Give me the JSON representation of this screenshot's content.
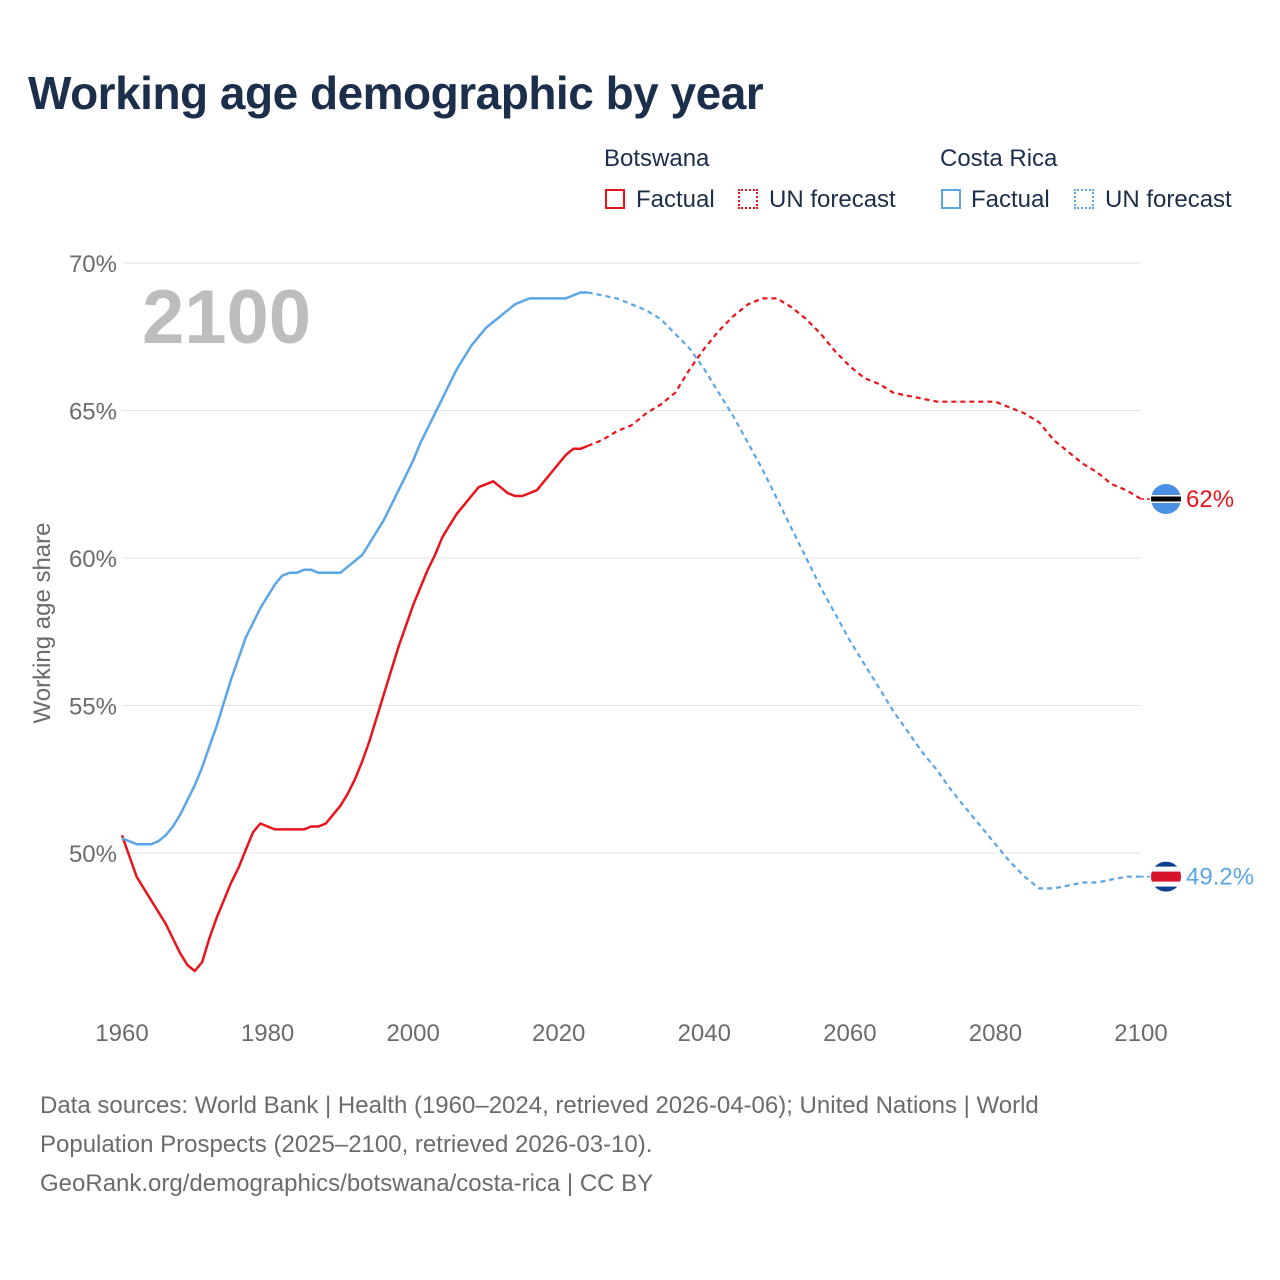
{
  "chart_data": {
    "type": "line",
    "title": "Working age demographic by year",
    "xlabel": "",
    "ylabel": "Working age share",
    "xlim": [
      1960,
      2100
    ],
    "ylim": [
      45.5,
      70.5
    ],
    "x_ticks": [
      1960,
      1980,
      2000,
      2020,
      2040,
      2060,
      2080,
      2100
    ],
    "y_ticks": [
      50,
      55,
      60,
      65,
      70
    ],
    "y_tick_labels": [
      "50%",
      "55%",
      "60%",
      "65%",
      "70%"
    ],
    "year_watermark": "2100",
    "legend": {
      "groups": [
        {
          "name": "Botswana",
          "items": [
            "Factual",
            "UN forecast"
          ]
        },
        {
          "name": "Costa Rica",
          "items": [
            "Factual",
            "UN forecast"
          ]
        }
      ]
    },
    "series": [
      {
        "name": "Botswana",
        "color": "#e8141b",
        "end_label": "62%",
        "factual": {
          "x": [
            1960,
            1961,
            1962,
            1963,
            1964,
            1965,
            1966,
            1967,
            1968,
            1969,
            1970,
            1971,
            1972,
            1973,
            1974,
            1975,
            1976,
            1977,
            1978,
            1979,
            1980,
            1981,
            1982,
            1983,
            1984,
            1985,
            1986,
            1987,
            1988,
            1989,
            1990,
            1991,
            1992,
            1993,
            1994,
            1995,
            1996,
            1997,
            1998,
            1999,
            2000,
            2001,
            2002,
            2003,
            2004,
            2005,
            2006,
            2007,
            2008,
            2009,
            2010,
            2011,
            2012,
            2013,
            2014,
            2015,
            2016,
            2017,
            2018,
            2019,
            2020,
            2021,
            2022,
            2023,
            2024
          ],
          "y": [
            50.6,
            49.9,
            49.2,
            48.8,
            48.4,
            48.0,
            47.6,
            47.1,
            46.6,
            46.2,
            46.0,
            46.3,
            47.1,
            47.8,
            48.4,
            49.0,
            49.5,
            50.1,
            50.7,
            51.0,
            50.9,
            50.8,
            50.8,
            50.8,
            50.8,
            50.8,
            50.9,
            50.9,
            51.0,
            51.3,
            51.6,
            52.0,
            52.5,
            53.1,
            53.8,
            54.6,
            55.4,
            56.2,
            57.0,
            57.7,
            58.4,
            59.0,
            59.6,
            60.1,
            60.7,
            61.1,
            61.5,
            61.8,
            62.1,
            62.4,
            62.5,
            62.6,
            62.4,
            62.2,
            62.1,
            62.1,
            62.2,
            62.3,
            62.6,
            62.9,
            63.2,
            63.5,
            63.7,
            63.7,
            63.8
          ]
        },
        "forecast": {
          "x": [
            2024,
            2026,
            2028,
            2030,
            2032,
            2034,
            2036,
            2038,
            2040,
            2042,
            2044,
            2046,
            2048,
            2050,
            2052,
            2054,
            2056,
            2058,
            2060,
            2062,
            2064,
            2066,
            2068,
            2070,
            2072,
            2074,
            2076,
            2078,
            2080,
            2082,
            2084,
            2086,
            2088,
            2090,
            2092,
            2094,
            2096,
            2098,
            2100
          ],
          "y": [
            63.8,
            64.0,
            64.3,
            64.5,
            64.9,
            65.2,
            65.6,
            66.4,
            67.1,
            67.7,
            68.2,
            68.6,
            68.8,
            68.8,
            68.5,
            68.1,
            67.6,
            67.0,
            66.5,
            66.1,
            65.9,
            65.6,
            65.5,
            65.4,
            65.3,
            65.3,
            65.3,
            65.3,
            65.3,
            65.1,
            64.9,
            64.6,
            64.0,
            63.6,
            63.2,
            62.9,
            62.5,
            62.3,
            62.0
          ]
        }
      },
      {
        "name": "Costa Rica",
        "color": "#5aa6e6",
        "end_label": "49.2%",
        "factual": {
          "x": [
            1960,
            1961,
            1962,
            1963,
            1964,
            1965,
            1966,
            1967,
            1968,
            1969,
            1970,
            1971,
            1972,
            1973,
            1974,
            1975,
            1976,
            1977,
            1978,
            1979,
            1980,
            1981,
            1982,
            1983,
            1984,
            1985,
            1986,
            1987,
            1988,
            1989,
            1990,
            1991,
            1992,
            1993,
            1994,
            1995,
            1996,
            1997,
            1998,
            1999,
            2000,
            2001,
            2002,
            2003,
            2004,
            2005,
            2006,
            2007,
            2008,
            2009,
            2010,
            2011,
            2012,
            2013,
            2014,
            2015,
            2016,
            2017,
            2018,
            2019,
            2020,
            2021,
            2022,
            2023,
            2024
          ],
          "y": [
            50.5,
            50.4,
            50.3,
            50.3,
            50.3,
            50.4,
            50.6,
            50.9,
            51.3,
            51.8,
            52.3,
            52.9,
            53.6,
            54.3,
            55.1,
            55.9,
            56.6,
            57.3,
            57.8,
            58.3,
            58.7,
            59.1,
            59.4,
            59.5,
            59.5,
            59.6,
            59.6,
            59.5,
            59.5,
            59.5,
            59.5,
            59.7,
            59.9,
            60.1,
            60.5,
            60.9,
            61.3,
            61.8,
            62.3,
            62.8,
            63.3,
            63.9,
            64.4,
            64.9,
            65.4,
            65.9,
            66.4,
            66.8,
            67.2,
            67.5,
            67.8,
            68.0,
            68.2,
            68.4,
            68.6,
            68.7,
            68.8,
            68.8,
            68.8,
            68.8,
            68.8,
            68.8,
            68.9,
            69.0,
            69.0
          ]
        },
        "forecast": {
          "x": [
            2024,
            2026,
            2028,
            2030,
            2032,
            2034,
            2036,
            2038,
            2040,
            2042,
            2044,
            2046,
            2048,
            2050,
            2052,
            2054,
            2056,
            2058,
            2060,
            2062,
            2064,
            2066,
            2068,
            2070,
            2072,
            2074,
            2076,
            2078,
            2080,
            2082,
            2084,
            2086,
            2088,
            2090,
            2092,
            2094,
            2096,
            2098,
            2100
          ],
          "y": [
            69.0,
            68.9,
            68.8,
            68.6,
            68.4,
            68.1,
            67.6,
            67.1,
            66.4,
            65.6,
            64.8,
            63.9,
            63.0,
            62.0,
            61.0,
            60.0,
            59.0,
            58.1,
            57.2,
            56.4,
            55.6,
            54.8,
            54.1,
            53.4,
            52.8,
            52.1,
            51.5,
            50.9,
            50.3,
            49.7,
            49.2,
            48.8,
            48.8,
            48.9,
            49.0,
            49.0,
            49.1,
            49.2,
            49.2
          ]
        }
      }
    ]
  },
  "sources": {
    "line1": "Data sources: World Bank | Health (1960–2024, retrieved 2026-04-06); United Nations | World",
    "line2": "Population Prospects (2025–2100, retrieved 2026-03-10).",
    "line3": "GeoRank.org/demographics/botswana/costa-rica | CC BY"
  },
  "colors": {
    "botswana": "#e8141b",
    "costa_rica": "#5aa6e6",
    "grid": "#e3e3e3",
    "axis_text": "#6b6b6b",
    "watermark": "#bdbdbd"
  }
}
